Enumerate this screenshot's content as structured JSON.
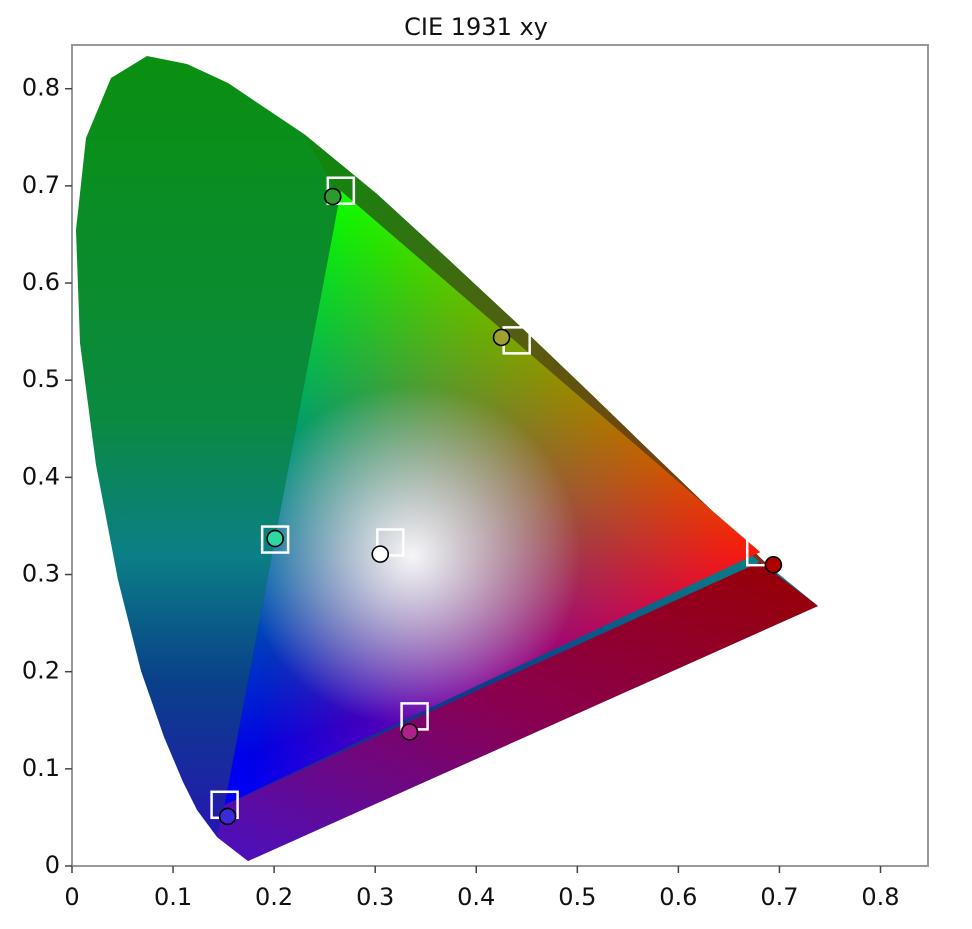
{
  "chart_data": {
    "type": "scatter",
    "title": "CIE 1931 xy",
    "xlim": [
      0,
      0.847
    ],
    "ylim": [
      0,
      0.845
    ],
    "xticks": [
      0,
      0.1,
      0.2,
      0.3,
      0.4,
      0.5,
      0.6,
      0.7,
      0.8
    ],
    "yticks": [
      0,
      0.1,
      0.2,
      0.3,
      0.4,
      0.5,
      0.6,
      0.7,
      0.8
    ],
    "series": [
      {
        "marker": "square",
        "color": "#ffffff",
        "x": [
          0.681,
          0.266,
          0.151,
          0.315,
          0.201,
          0.44,
          0.339
        ],
        "values": [
          0.323,
          0.695,
          0.063,
          0.333,
          0.336,
          0.541,
          0.154
        ]
      },
      {
        "marker": "circle",
        "colors": [
          "#b00000",
          "#2e9a2e",
          "#3a2ad8",
          "#ffffff",
          "#2fd8a0",
          "#a0a030",
          "#b0208a"
        ],
        "x": [
          0.694,
          0.258,
          0.154,
          0.305,
          0.201,
          0.425,
          0.334
        ],
        "values": [
          0.31,
          0.689,
          0.051,
          0.321,
          0.337,
          0.544,
          0.138
        ]
      }
    ]
  }
}
